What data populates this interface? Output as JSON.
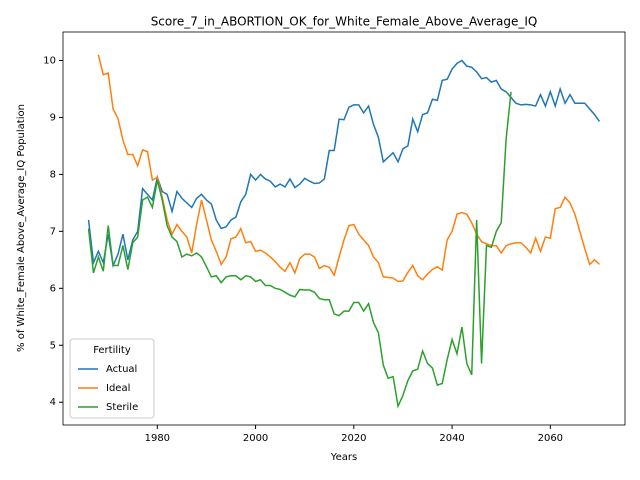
{
  "chart_data": {
    "type": "line",
    "title": "Score_7_in_ABORTION_OK_for_White_Female_Above_Average_IQ",
    "xlabel": "Years",
    "ylabel": "% of White_Female Above_Average_IQ Population",
    "legend_title": "Fertility",
    "legend_loc": "lower left",
    "x": [
      1966,
      1967,
      1968,
      1969,
      1970,
      1971,
      1972,
      1973,
      1974,
      1975,
      1976,
      1977,
      1978,
      1979,
      1980,
      1981,
      1982,
      1983,
      1984,
      1985,
      1986,
      1987,
      1988,
      1989,
      1990,
      1991,
      1992,
      1993,
      1994,
      1995,
      1996,
      1997,
      1998,
      1999,
      2000,
      2001,
      2002,
      2003,
      2004,
      2005,
      2006,
      2007,
      2008,
      2009,
      2010,
      2011,
      2012,
      2013,
      2014,
      2015,
      2016,
      2017,
      2018,
      2019,
      2020,
      2021,
      2022,
      2023,
      2024,
      2025,
      2026,
      2027,
      2028,
      2029,
      2030,
      2031,
      2032,
      2033,
      2034,
      2035,
      2036,
      2037,
      2038,
      2039,
      2040,
      2041,
      2042,
      2043,
      2044,
      2045,
      2046,
      2047,
      2048,
      2049,
      2050,
      2051,
      2052,
      2053,
      2054,
      2055,
      2056,
      2057,
      2058,
      2059,
      2060,
      2061,
      2062,
      2063,
      2064,
      2065,
      2066,
      2067,
      2068,
      2069,
      2070
    ],
    "series": [
      {
        "name": "Actual",
        "color": "#1f77b4",
        "values": [
          7.2,
          6.45,
          6.65,
          6.45,
          6.95,
          6.4,
          6.6,
          6.95,
          6.5,
          6.85,
          7.0,
          7.75,
          7.65,
          7.55,
          7.95,
          7.7,
          7.65,
          7.35,
          7.7,
          7.58,
          7.5,
          7.42,
          7.58,
          7.65,
          7.55,
          7.48,
          7.2,
          7.05,
          7.08,
          7.2,
          7.25,
          7.52,
          7.65,
          8.0,
          7.9,
          8.0,
          7.92,
          7.88,
          7.78,
          7.83,
          7.78,
          7.92,
          7.77,
          7.83,
          7.93,
          7.88,
          7.84,
          7.85,
          7.92,
          8.42,
          8.42,
          8.97,
          8.96,
          9.18,
          9.22,
          9.22,
          9.08,
          9.2,
          8.88,
          8.65,
          8.22,
          8.3,
          8.38,
          8.22,
          8.45,
          8.5,
          8.97,
          8.75,
          9.05,
          9.08,
          9.32,
          9.3,
          9.65,
          9.67,
          9.85,
          9.95,
          10.0,
          9.9,
          9.88,
          9.8,
          9.68,
          9.7,
          9.62,
          9.65,
          9.5,
          9.45,
          9.35,
          9.25,
          9.22,
          9.23,
          9.22,
          9.2,
          9.4,
          9.2,
          9.45,
          9.2,
          9.5,
          9.25,
          9.4,
          9.25,
          9.25,
          9.25,
          9.15,
          9.05,
          8.93
        ]
      },
      {
        "name": "Ideal",
        "color": "#ff7f0e",
        "values": [
          null,
          null,
          10.1,
          9.75,
          9.78,
          9.15,
          8.98,
          8.6,
          8.35,
          8.35,
          8.15,
          8.43,
          8.4,
          7.9,
          7.95,
          7.6,
          7.2,
          6.95,
          7.12,
          7.0,
          6.9,
          6.62,
          7.12,
          7.55,
          7.2,
          6.85,
          6.65,
          6.42,
          6.55,
          6.87,
          6.9,
          7.05,
          6.8,
          6.82,
          6.65,
          6.67,
          6.62,
          6.55,
          6.47,
          6.37,
          6.3,
          6.45,
          6.27,
          6.52,
          6.6,
          6.6,
          6.55,
          6.35,
          6.4,
          6.37,
          6.23,
          6.55,
          6.85,
          7.1,
          7.12,
          6.95,
          6.85,
          6.75,
          6.55,
          6.45,
          6.2,
          6.19,
          6.18,
          6.12,
          6.13,
          6.28,
          6.4,
          6.22,
          6.15,
          6.25,
          6.33,
          6.38,
          6.32,
          6.85,
          7.0,
          7.3,
          7.33,
          7.3,
          7.15,
          6.95,
          6.82,
          6.78,
          6.75,
          6.75,
          6.62,
          6.75,
          6.78,
          6.8,
          6.8,
          6.72,
          6.62,
          6.88,
          6.65,
          6.9,
          6.88,
          7.4,
          7.42,
          7.6,
          7.5,
          7.3,
          7.0,
          6.7,
          6.42,
          6.5,
          6.42
        ]
      },
      {
        "name": "Sterile",
        "color": "#2ca02c",
        "values": [
          7.05,
          6.27,
          6.55,
          6.3,
          7.1,
          6.4,
          6.4,
          6.75,
          6.33,
          6.8,
          6.9,
          7.55,
          7.6,
          7.42,
          7.9,
          7.55,
          7.1,
          6.9,
          6.82,
          6.55,
          6.6,
          6.57,
          6.62,
          6.55,
          6.38,
          6.2,
          6.22,
          6.1,
          6.2,
          6.22,
          6.22,
          6.15,
          6.22,
          6.2,
          6.12,
          6.15,
          6.05,
          6.05,
          6.0,
          5.98,
          5.93,
          5.88,
          5.85,
          5.98,
          5.97,
          5.97,
          5.93,
          5.82,
          5.8,
          5.8,
          5.55,
          5.52,
          5.6,
          5.6,
          5.75,
          5.75,
          5.6,
          5.73,
          5.4,
          5.22,
          4.65,
          4.42,
          4.45,
          3.93,
          4.12,
          4.38,
          4.55,
          4.58,
          4.9,
          4.68,
          4.6,
          4.3,
          4.33,
          4.75,
          5.1,
          4.85,
          5.32,
          4.68,
          4.48,
          7.2,
          4.68,
          6.75,
          6.72,
          7.0,
          7.15,
          8.62,
          9.45,
          null,
          null,
          null,
          null,
          null,
          null,
          null,
          null,
          null,
          null,
          null,
          null,
          null,
          null,
          null,
          null,
          null,
          null
        ]
      }
    ],
    "xlim": [
      1960.8,
      2075.2
    ],
    "xticks": [
      1980,
      2000,
      2020,
      2040,
      2060
    ],
    "ylim": [
      3.6,
      10.5
    ],
    "yticks": [
      4,
      5,
      6,
      7,
      8,
      9,
      10
    ],
    "grid": false
  }
}
